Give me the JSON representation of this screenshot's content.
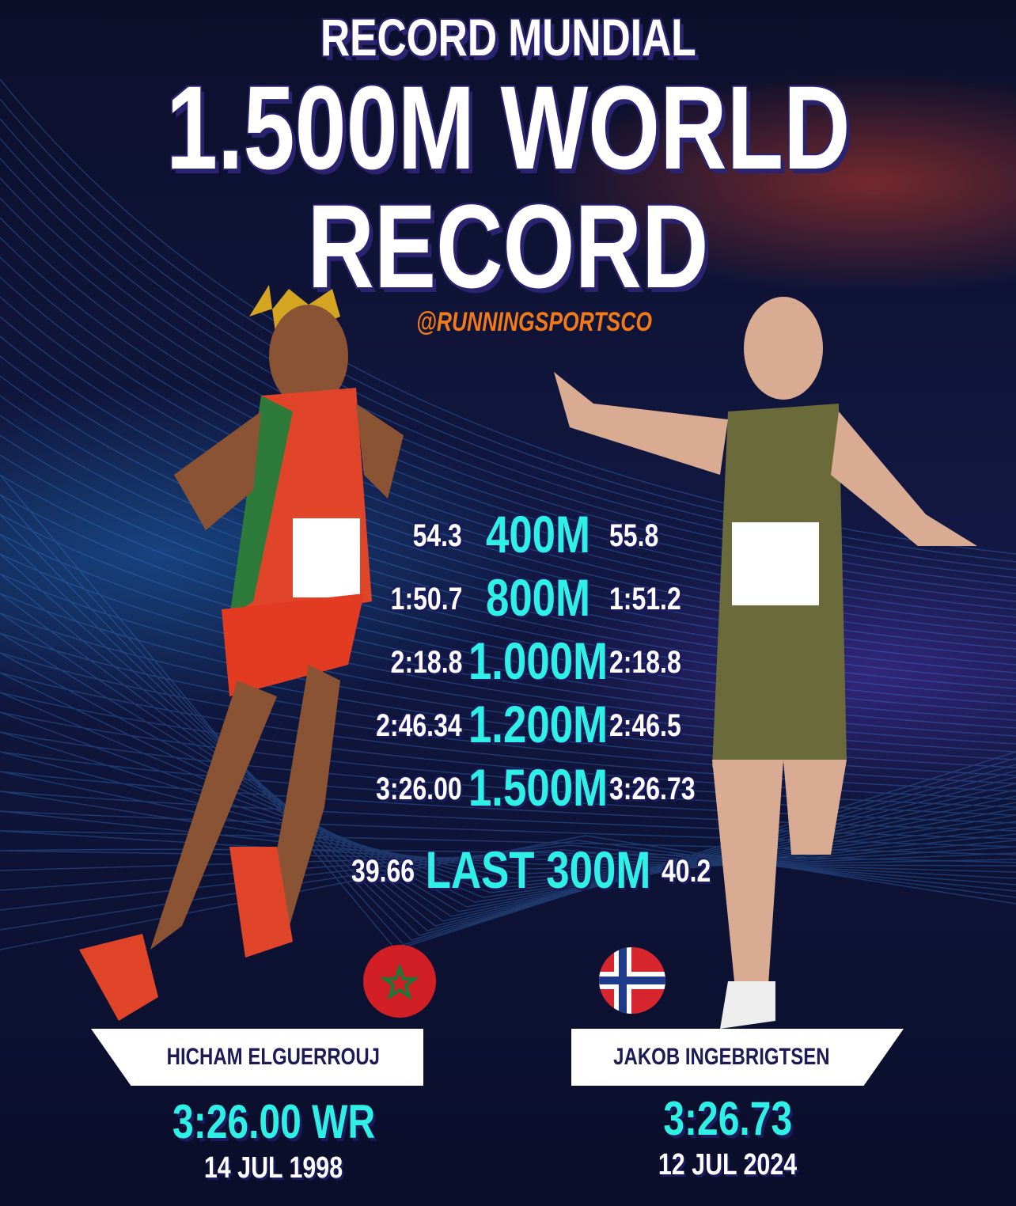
{
  "header": {
    "kicker": "RECORD MUNDIAL",
    "title_line1": "1.500M WORLD",
    "title_line2": "RECORD",
    "handle": "@RUNNINGSPORTSCO"
  },
  "splits": [
    {
      "distance": "400M",
      "left": "54.3",
      "right": "55.8"
    },
    {
      "distance": "800M",
      "left": "1:50.7",
      "right": "1:51.2"
    },
    {
      "distance": "1.000M",
      "left": "2:18.8",
      "right": "2:18.8"
    },
    {
      "distance": "1.200M",
      "left": "2:46.34",
      "right": "2:46.5"
    },
    {
      "distance": "1.500M",
      "left": "3:26.00",
      "right": "3:26.73"
    },
    {
      "distance": "LAST 300M",
      "left": "39.66",
      "right": "40.2"
    }
  ],
  "athletes": [
    {
      "name": "HICHAM ELGUERROUJ",
      "time": "3:26.00 WR",
      "date": "14 JUL 1998",
      "flag": "morocco-flag-icon",
      "singlet_color": "#e0452a"
    },
    {
      "name": "JAKOB INGEBRIGTSEN",
      "time": "3:26.73",
      "date": "12 JUL 2024",
      "flag": "norway-flag-icon",
      "singlet_color": "#6b6a3a"
    }
  ],
  "colors": {
    "accent": "#2ff0e4",
    "handle": "#f07a1a",
    "background": "#0b1030",
    "outline": "#25206a"
  }
}
